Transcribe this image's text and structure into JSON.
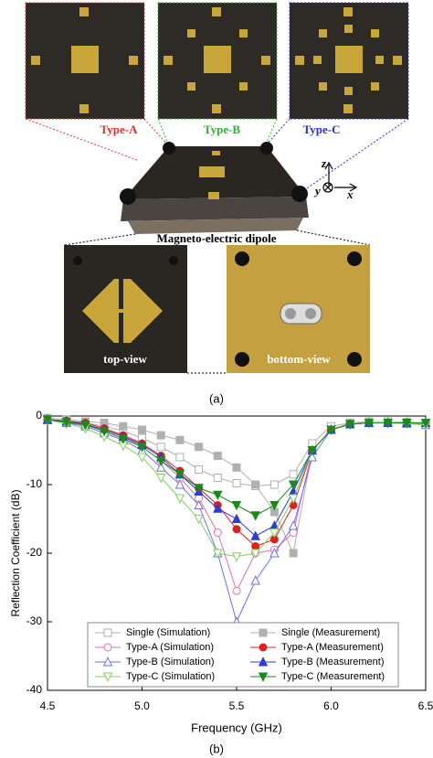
{
  "figure_a": {
    "labels": {
      "type_a": "Type-A",
      "type_b": "Type-B",
      "type_c": "Type-C",
      "dipole": "Magneto-electric dipole",
      "top_view": "top-view",
      "bottom_view": "bottom-view",
      "axis_z": "z",
      "axis_y": "y",
      "axis_x": "x"
    },
    "caption": "(a)"
  },
  "figure_b": {
    "caption": "(b)"
  },
  "chart_data": {
    "type": "line",
    "xlabel": "Frequency (GHz)",
    "ylabel": "Reflection Coefficient (dB)",
    "x": [
      4.5,
      4.6,
      4.7,
      4.8,
      4.9,
      5.0,
      5.1,
      5.2,
      5.3,
      5.4,
      5.5,
      5.6,
      5.7,
      5.8,
      5.9,
      6.0,
      6.1,
      6.2,
      6.3,
      6.4,
      6.5
    ],
    "xlim": [
      4.5,
      6.5
    ],
    "xticks": [
      4.5,
      {
        "value": 5.0,
        "label": "5.0"
      },
      5.5,
      {
        "value": 6.0,
        "label": "6.0"
      },
      6.5
    ],
    "ylim": [
      -40,
      0
    ],
    "yticks": [
      0,
      -10,
      -20,
      -30,
      -40
    ],
    "legend": "lower left",
    "grid": false,
    "series": [
      {
        "name": "Single (Simulation)",
        "color": "#b0b0b0",
        "marker": "square",
        "filled": false,
        "values": [
          -0.5,
          -0.7,
          -1,
          -1.5,
          -2.2,
          -3.2,
          -4.5,
          -6,
          -7.8,
          -9,
          -9.8,
          -10.2,
          -10,
          -8.5,
          -4,
          -1.5,
          -1,
          -0.8,
          -0.8,
          -0.9,
          -1
        ]
      },
      {
        "name": "Single (Measurement)",
        "color": "#b0b0b0",
        "marker": "square",
        "filled": true,
        "values": [
          -0.3,
          -0.5,
          -0.8,
          -1,
          -1.5,
          -2,
          -2.8,
          -3.5,
          -4.5,
          -5.8,
          -7.5,
          -10,
          -14,
          -20,
          -5,
          -2,
          -1,
          -1,
          -1,
          -1,
          -1
        ]
      },
      {
        "name": "Type-A (Simulation)",
        "color": "#e070a8",
        "marker": "circle",
        "filled": false,
        "values": [
          -0.5,
          -0.8,
          -1.2,
          -2,
          -3,
          -4.5,
          -6.5,
          -9,
          -12,
          -17,
          -25.5,
          -20,
          -19.5,
          -17,
          -5,
          -2,
          -1.2,
          -1,
          -1,
          -1,
          -1.2
        ]
      },
      {
        "name": "Type-A (Measurement)",
        "color": "#e02020",
        "marker": "circle",
        "filled": true,
        "values": [
          -0.5,
          -0.7,
          -1,
          -1.8,
          -2.8,
          -4,
          -5.8,
          -8,
          -10.5,
          -13,
          -16.5,
          -19,
          -18,
          -13,
          -5,
          -2,
          -1.2,
          -1,
          -1,
          -1,
          -1
        ]
      },
      {
        "name": "Type-B (Simulation)",
        "color": "#7070e0",
        "marker": "triangle-up",
        "filled": false,
        "values": [
          -0.6,
          -1,
          -1.5,
          -2.5,
          -3.5,
          -5,
          -7.5,
          -10,
          -13,
          -20,
          -30,
          -24,
          -20,
          -16,
          -6,
          -2,
          -1.2,
          -1,
          -1,
          -1.1,
          -1.3
        ]
      },
      {
        "name": "Type-B (Measurement)",
        "color": "#2a3fd0",
        "marker": "triangle-up",
        "filled": true,
        "values": [
          -0.5,
          -0.8,
          -1.2,
          -2,
          -3,
          -4.2,
          -6,
          -8.5,
          -11,
          -13.5,
          -15,
          -17.5,
          -16,
          -11,
          -5,
          -2,
          -1.2,
          -1,
          -1,
          -1,
          -1
        ]
      },
      {
        "name": "Type-C (Simulation)",
        "color": "#80d060",
        "marker": "triangle-down",
        "filled": false,
        "values": [
          -0.6,
          -1.1,
          -1.8,
          -3,
          -4.3,
          -6,
          -9,
          -12,
          -15,
          -20,
          -20.5,
          -20,
          -17,
          -12,
          -5,
          -2,
          -1.2,
          -1,
          -1,
          -1.1,
          -1.3
        ]
      },
      {
        "name": "Type-C (Measurement)",
        "color": "#1a8a1a",
        "marker": "triangle-down",
        "filled": true,
        "values": [
          -0.5,
          -0.9,
          -1.3,
          -2.2,
          -3.3,
          -4.5,
          -6.5,
          -8.5,
          -10.5,
          -11.5,
          -13,
          -14.5,
          -13,
          -10,
          -5,
          -2,
          -1.2,
          -1,
          -1,
          -1,
          -1
        ]
      }
    ]
  }
}
